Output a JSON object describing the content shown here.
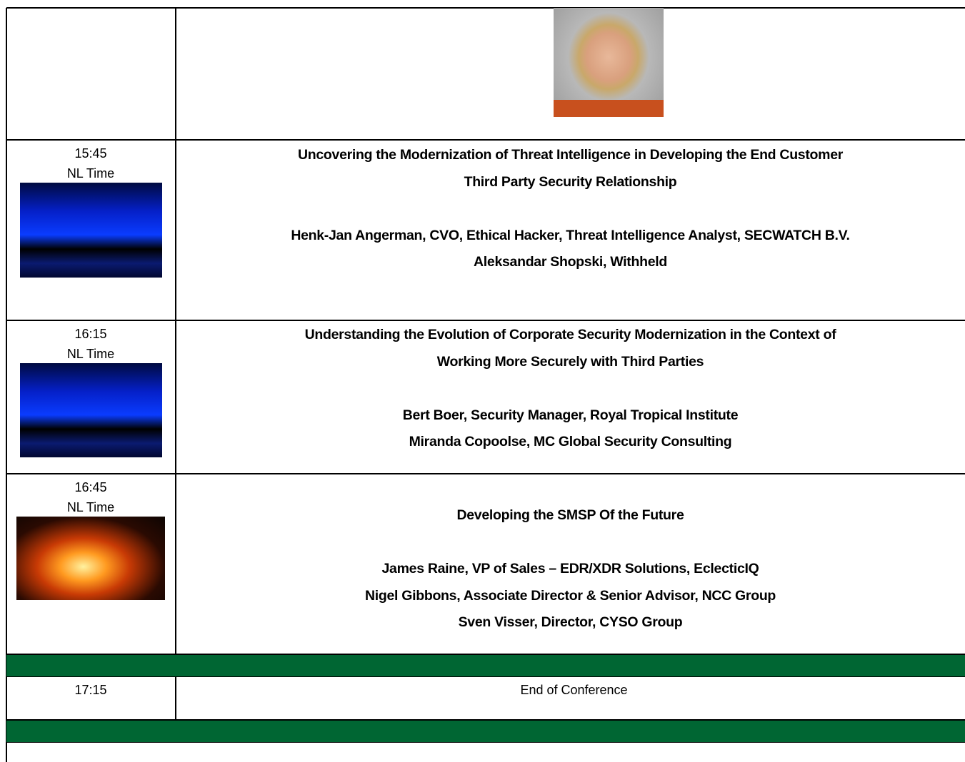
{
  "sessions": [
    {
      "time": "15:45",
      "zone": "NL Time",
      "title_lines": [
        "Uncovering the Modernization of Threat Intelligence in Developing the End Customer",
        "Third Party Security Relationship"
      ],
      "speakers": [
        "Henk-Jan Angerman, CVO, Ethical Hacker, Threat Intelligence Analyst, SECWATCH B.V.",
        "Aleksandar Shopski, Withheld"
      ]
    },
    {
      "time": "16:15",
      "zone": "NL Time",
      "title_lines": [
        "Understanding the Evolution of Corporate Security Modernization in the Context of",
        "Working More Securely with Third Parties"
      ],
      "speakers": [
        "Bert Boer, Security Manager, Royal Tropical Institute",
        "Miranda Copoolse, MC Global Security Consulting"
      ]
    },
    {
      "time": "16:45",
      "zone": "NL Time",
      "title_lines": [
        "Developing the SMSP Of the Future"
      ],
      "speakers": [
        "James Raine, VP of Sales – EDR/XDR Solutions, EclecticIQ",
        "Nigel Gibbons, Associate Director & Senior Advisor, NCC Group",
        "Sven Visser, Director, CYSO Group"
      ]
    }
  ],
  "closing": {
    "time": "17:15",
    "label": "End of Conference"
  }
}
